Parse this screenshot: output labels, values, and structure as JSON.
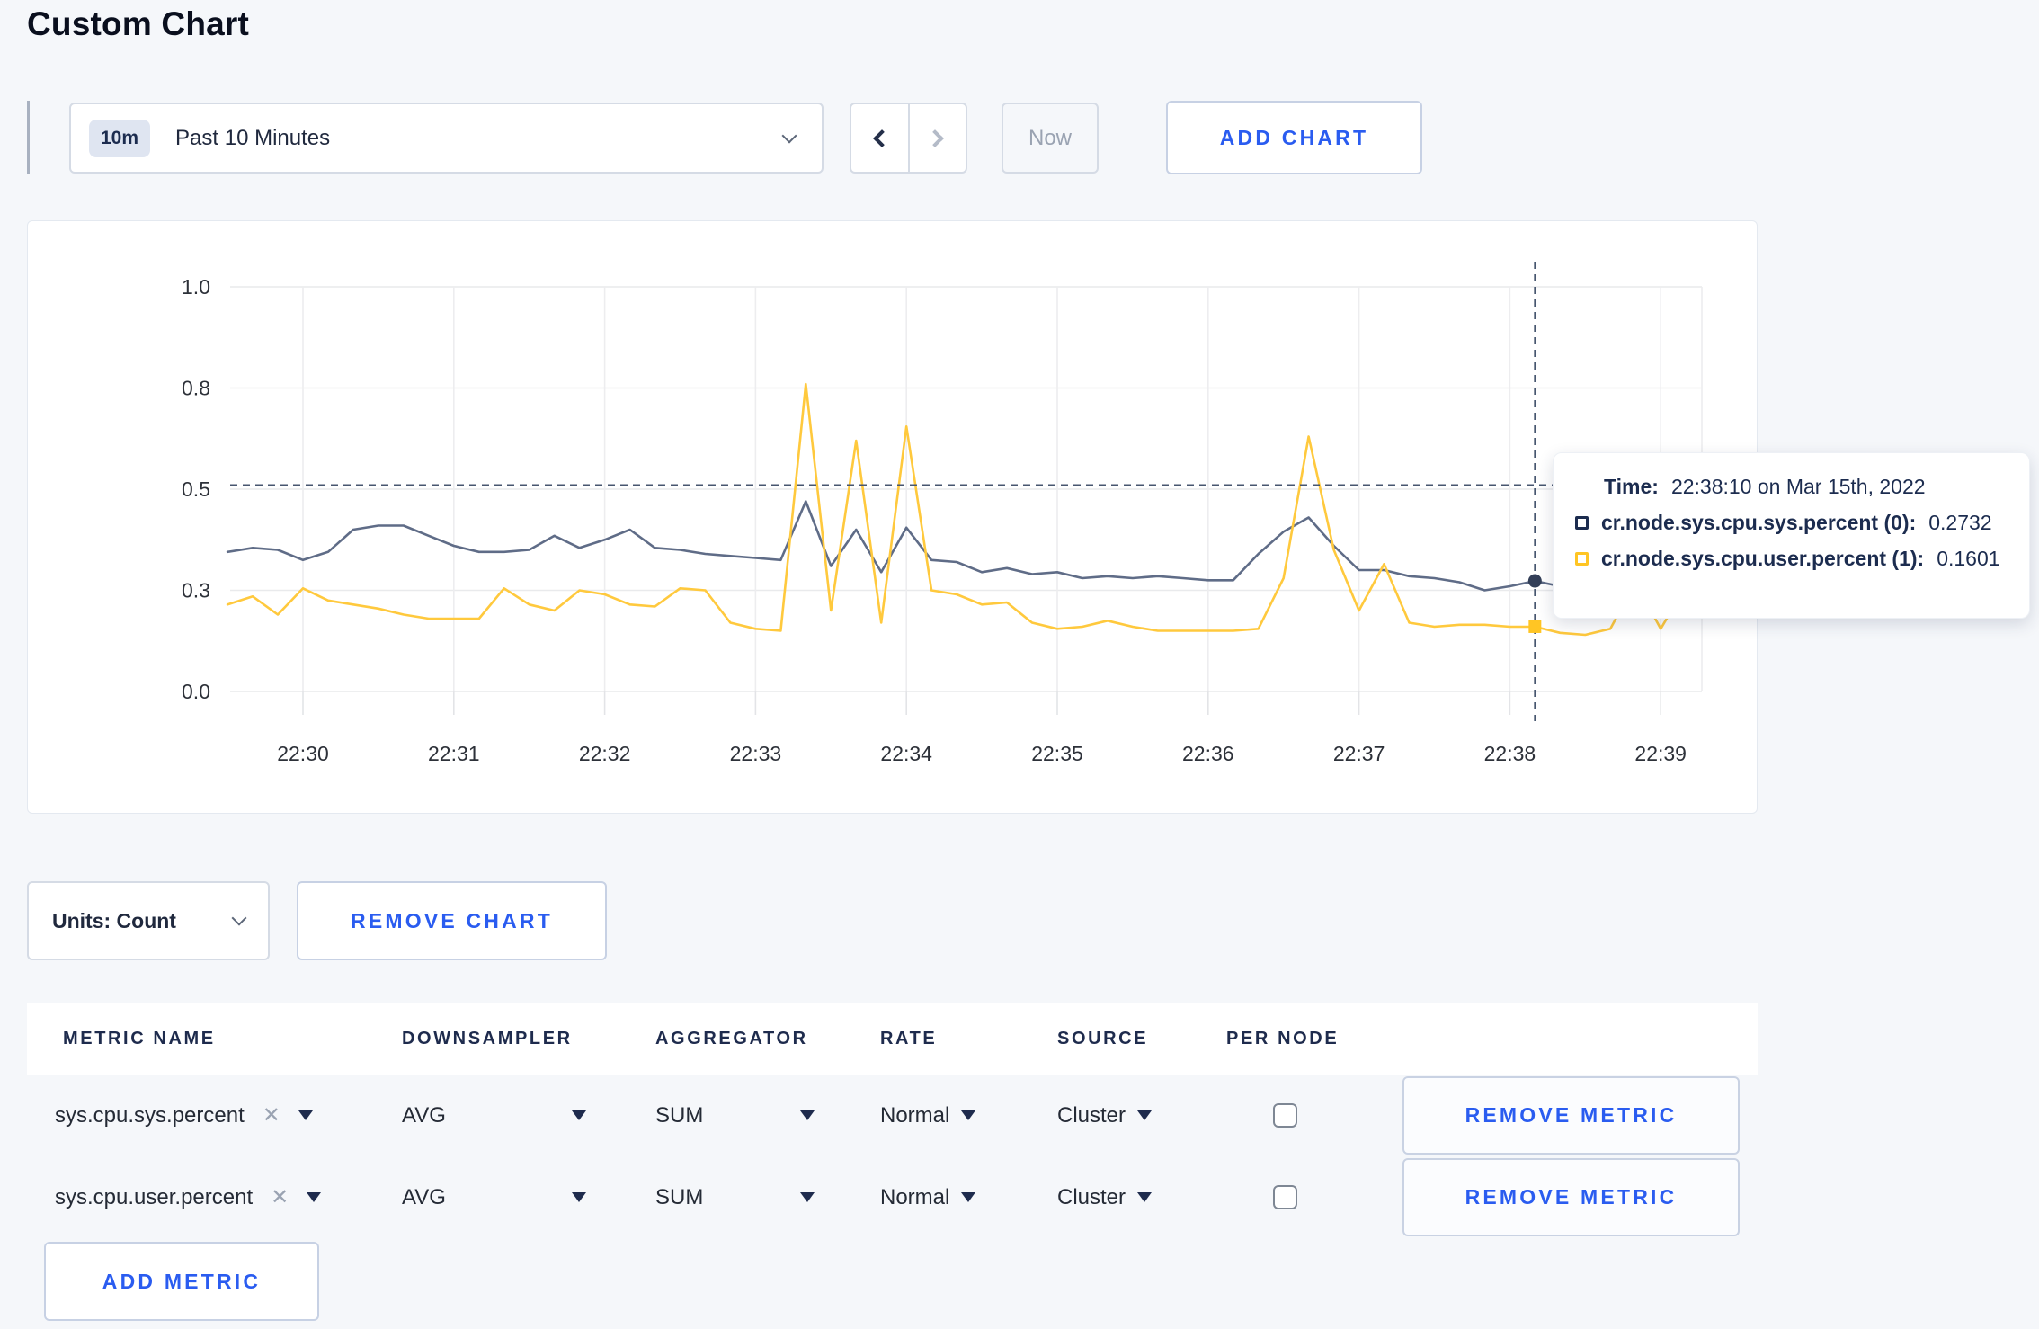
{
  "page": {
    "title": "Custom Chart"
  },
  "toolbar": {
    "time_badge": "10m",
    "time_label": "Past 10 Minutes",
    "now_label": "Now",
    "add_chart_label": "ADD CHART"
  },
  "icons": {
    "close": "✕"
  },
  "tooltip": {
    "time_label": "Time:",
    "time_value": "22:38:10 on Mar 15th, 2022",
    "rows": [
      {
        "label": "cr.node.sys.cpu.sys.percent (0):",
        "value": "0.2732",
        "color": "#1c2c4f"
      },
      {
        "label": "cr.node.sys.cpu.user.percent (1):",
        "value": "0.1601",
        "color": "#ffc524"
      }
    ]
  },
  "chart_controls": {
    "units_label": "Units: Count",
    "remove_chart_label": "REMOVE CHART"
  },
  "metrics_table": {
    "headers": [
      "METRIC NAME",
      "DOWNSAMPLER",
      "AGGREGATOR",
      "RATE",
      "SOURCE",
      "PER NODE"
    ],
    "rows": [
      {
        "name": "sys.cpu.sys.percent",
        "downsampler": "AVG",
        "aggregator": "SUM",
        "rate": "Normal",
        "source": "Cluster",
        "per_node_checked": false,
        "remove_label": "REMOVE METRIC"
      },
      {
        "name": "sys.cpu.user.percent",
        "downsampler": "AVG",
        "aggregator": "SUM",
        "rate": "Normal",
        "source": "Cluster",
        "per_node_checked": false,
        "remove_label": "REMOVE METRIC"
      }
    ],
    "add_metric_label": "ADD METRIC"
  },
  "chart_data": {
    "type": "line",
    "title": "",
    "xlabel": "",
    "ylabel": "",
    "grid": true,
    "legend_position": "tooltip",
    "ylim": [
      0,
      1
    ],
    "y_tick_labels": [
      "0.0",
      "0.3",
      "0.5",
      "0.8",
      "1.0"
    ],
    "y_tick_values": [
      0,
      0.25,
      0.5,
      0.75,
      1.0
    ],
    "x_ticks": [
      "22:30",
      "22:31",
      "22:32",
      "22:33",
      "22:34",
      "22:35",
      "22:36",
      "22:37",
      "22:38",
      "22:39"
    ],
    "x_start": "22:29:30",
    "x_interval_sec": 10,
    "crosshair": {
      "index": 52,
      "time": "22:38:10",
      "hover_value": 0.51
    },
    "series": [
      {
        "name": "cr.node.sys.cpu.sys.percent",
        "color": "#5f6c87",
        "marker_color": "#333f58",
        "marker_shape": "circle",
        "values": [
          0.345,
          0.355,
          0.35,
          0.325,
          0.345,
          0.4,
          0.41,
          0.41,
          0.385,
          0.36,
          0.345,
          0.345,
          0.35,
          0.385,
          0.355,
          0.375,
          0.4,
          0.355,
          0.35,
          0.34,
          0.335,
          0.33,
          0.325,
          0.47,
          0.31,
          0.4,
          0.295,
          0.405,
          0.325,
          0.32,
          0.295,
          0.305,
          0.29,
          0.295,
          0.28,
          0.285,
          0.28,
          0.285,
          0.28,
          0.275,
          0.275,
          0.34,
          0.395,
          0.43,
          0.36,
          0.3,
          0.3,
          0.285,
          0.28,
          0.27,
          0.25,
          0.26,
          0.2732,
          0.26,
          0.27,
          0.3,
          0.31,
          0.3,
          0.305
        ]
      },
      {
        "name": "cr.node.sys.cpu.user.percent",
        "color": "#ffc93d",
        "marker_color": "#ffc524",
        "marker_shape": "square",
        "values": [
          0.215,
          0.235,
          0.19,
          0.255,
          0.225,
          0.215,
          0.205,
          0.19,
          0.18,
          0.18,
          0.18,
          0.255,
          0.215,
          0.2,
          0.25,
          0.24,
          0.215,
          0.21,
          0.255,
          0.25,
          0.17,
          0.155,
          0.15,
          0.76,
          0.2,
          0.62,
          0.17,
          0.655,
          0.25,
          0.24,
          0.215,
          0.22,
          0.17,
          0.155,
          0.16,
          0.175,
          0.16,
          0.15,
          0.15,
          0.15,
          0.15,
          0.155,
          0.28,
          0.63,
          0.35,
          0.2,
          0.315,
          0.17,
          0.16,
          0.165,
          0.165,
          0.16,
          0.1601,
          0.145,
          0.14,
          0.155,
          0.27,
          0.155,
          0.26
        ]
      }
    ]
  }
}
